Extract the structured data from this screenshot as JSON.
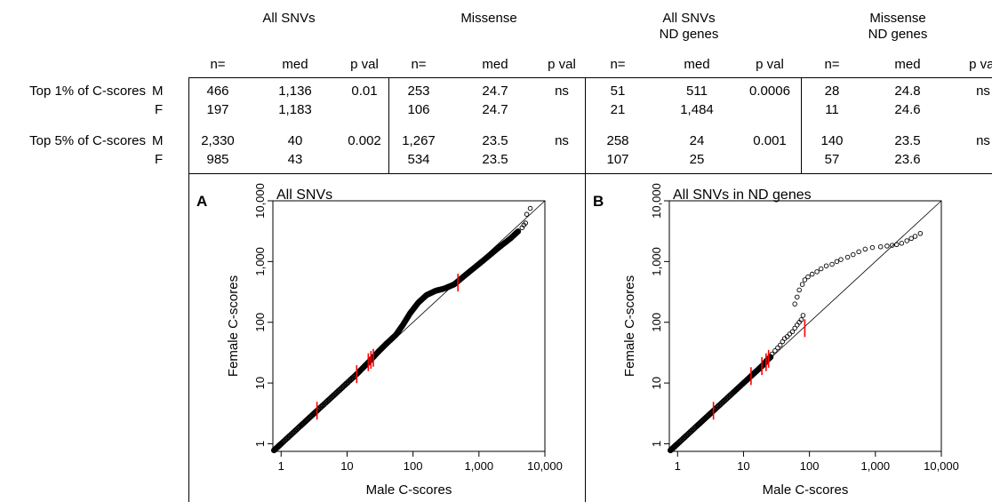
{
  "table": {
    "group_headers": [
      [
        "All SNVs"
      ],
      [
        "Missense"
      ],
      [
        "All SNVs",
        "ND genes"
      ],
      [
        "Missense",
        "ND genes"
      ]
    ],
    "col_headers": [
      "n=",
      "med",
      "p val"
    ],
    "rows": [
      {
        "label": "Top 1% of C-scores",
        "sex": "M",
        "cells": [
          [
            "466",
            "1,136",
            "0.01"
          ],
          [
            "253",
            "24.7",
            "ns"
          ],
          [
            "51",
            "511",
            "0.0006"
          ],
          [
            "28",
            "24.8",
            "ns"
          ]
        ]
      },
      {
        "label": "",
        "sex": "F",
        "cells": [
          [
            "197",
            "1,183",
            ""
          ],
          [
            "106",
            "24.7",
            ""
          ],
          [
            "21",
            "1,484",
            ""
          ],
          [
            "11",
            "24.6",
            ""
          ]
        ]
      },
      {
        "label": "Top 5% of C-scores",
        "sex": "M",
        "cells": [
          [
            "2,330",
            "40",
            "0.002"
          ],
          [
            "1,267",
            "23.5",
            "ns"
          ],
          [
            "258",
            "24",
            "0.001"
          ],
          [
            "140",
            "23.5",
            "ns"
          ]
        ]
      },
      {
        "label": "",
        "sex": "F",
        "cells": [
          [
            "985",
            "43",
            ""
          ],
          [
            "534",
            "23.5",
            ""
          ],
          [
            "107",
            "25",
            ""
          ],
          [
            "57",
            "23.6",
            ""
          ]
        ]
      }
    ]
  },
  "chart_data": [
    {
      "type": "scatter",
      "panel": "A",
      "title": "All SNVs",
      "xlabel": "Male C-scores",
      "ylabel": "Female C-scores",
      "log_scale": true,
      "xlim": [
        0.75,
        10000
      ],
      "ylim": [
        0.75,
        10000
      ],
      "x_ticks": [
        "1",
        "10",
        "100",
        "1,000",
        "10,000"
      ],
      "y_ticks": [
        "1",
        "10",
        "100",
        "1,000",
        "10,000"
      ],
      "reference_line": "y = x",
      "series": [
        {
          "type": "qq-curve",
          "color": "#000000",
          "points": [
            [
              0.78,
              0.78
            ],
            [
              1,
              1
            ],
            [
              2,
              2
            ],
            [
              3.5,
              3.5
            ],
            [
              7,
              7
            ],
            [
              14,
              14
            ],
            [
              22,
              23
            ],
            [
              30,
              33
            ],
            [
              40,
              45
            ],
            [
              55,
              62
            ],
            [
              70,
              90
            ],
            [
              90,
              140
            ],
            [
              120,
              210
            ],
            [
              160,
              280
            ],
            [
              220,
              330
            ],
            [
              300,
              360
            ],
            [
              420,
              420
            ],
            [
              600,
              580
            ],
            [
              900,
              830
            ],
            [
              1300,
              1150
            ],
            [
              2000,
              1700
            ],
            [
              3000,
              2400
            ],
            [
              4000,
              3200
            ]
          ]
        },
        {
          "type": "qq-outliers",
          "color": "#000000",
          "points": [
            [
              4500,
              3600
            ],
            [
              4800,
              4000
            ],
            [
              5100,
              4300
            ],
            [
              5300,
              6000
            ],
            [
              6000,
              7500
            ]
          ]
        },
        {
          "type": "quantile-markers",
          "color": "#ff0000",
          "points": [
            [
              3.5,
              3.5
            ],
            [
              14,
              14
            ],
            [
              21,
              22
            ],
            [
              23,
              24
            ],
            [
              25,
              26
            ],
            [
              480,
              450
            ]
          ]
        }
      ]
    },
    {
      "type": "scatter",
      "panel": "B",
      "title": "All SNVs in ND genes",
      "xlabel": "Male C-scores",
      "ylabel": "Female C-scores",
      "log_scale": true,
      "xlim": [
        0.75,
        10000
      ],
      "ylim": [
        0.75,
        10000
      ],
      "x_ticks": [
        "1",
        "10",
        "100",
        "1,000",
        "10,000"
      ],
      "y_ticks": [
        "1",
        "10",
        "100",
        "1,000",
        "10,000"
      ],
      "reference_line": "y = x",
      "series": [
        {
          "type": "qq-curve",
          "color": "#000000",
          "points": [
            [
              0.78,
              0.78
            ],
            [
              1,
              1
            ],
            [
              2,
              2
            ],
            [
              3.5,
              3.5
            ],
            [
              7,
              7
            ],
            [
              13,
              13
            ],
            [
              17,
              17
            ],
            [
              20,
              20
            ],
            [
              23,
              24
            ],
            [
              26,
              27
            ]
          ]
        },
        {
          "type": "qq-outliers",
          "color": "#000000",
          "points": [
            [
              27,
              30
            ],
            [
              30,
              34
            ],
            [
              33,
              38
            ],
            [
              36,
              42
            ],
            [
              39,
              48
            ],
            [
              42,
              54
            ],
            [
              46,
              58
            ],
            [
              50,
              64
            ],
            [
              55,
              70
            ],
            [
              60,
              80
            ],
            [
              65,
              90
            ],
            [
              70,
              100
            ],
            [
              75,
              110
            ],
            [
              80,
              130
            ],
            [
              60,
              200
            ],
            [
              65,
              260
            ],
            [
              70,
              340
            ],
            [
              78,
              420
            ],
            [
              85,
              500
            ],
            [
              95,
              560
            ],
            [
              110,
              620
            ],
            [
              130,
              680
            ],
            [
              150,
              760
            ],
            [
              180,
              850
            ],
            [
              220,
              900
            ],
            [
              260,
              1000
            ],
            [
              300,
              1080
            ],
            [
              380,
              1180
            ],
            [
              460,
              1300
            ],
            [
              560,
              1450
            ],
            [
              700,
              1600
            ],
            [
              900,
              1700
            ],
            [
              1200,
              1750
            ],
            [
              1500,
              1800
            ],
            [
              1800,
              1850
            ],
            [
              2100,
              1900
            ],
            [
              2500,
              2000
            ],
            [
              3000,
              2200
            ],
            [
              3500,
              2400
            ],
            [
              4000,
              2600
            ],
            [
              4800,
              2900
            ]
          ]
        },
        {
          "type": "quantile-markers",
          "color": "#ff0000",
          "points": [
            [
              3.5,
              3.5
            ],
            [
              13,
              13
            ],
            [
              19,
              19
            ],
            [
              22,
              22
            ],
            [
              24,
              25
            ],
            [
              85,
              80
            ]
          ]
        }
      ]
    }
  ]
}
